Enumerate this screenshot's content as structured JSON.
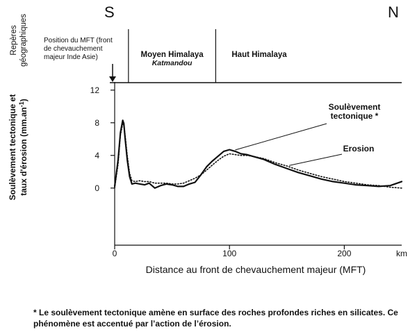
{
  "header": {
    "south_label": "S",
    "north_label": "N",
    "band_title_lines": [
      "Repères",
      "géographiques"
    ],
    "mft_position_lines": [
      "Position du MFT (front",
      "de chevauchement",
      "majeur Inde Asie)"
    ],
    "zones": [
      {
        "name": "Moyen Himalaya",
        "sub": "Katmandou",
        "start_km": 12,
        "end_km": 88
      },
      {
        "name": "Haut Himalaya",
        "sub": "",
        "start_km": 88,
        "end_km": 250
      }
    ]
  },
  "chart_data": {
    "type": "line",
    "title": "",
    "xlabel": "Distance au front de chevauchement majeur (MFT)",
    "x_unit": "km",
    "ylabel_lines": [
      "Soulèvement tectonique et",
      "taux d'érosion (mm.an",
      "-1",
      ")"
    ],
    "xlim": [
      0,
      250
    ],
    "ylim": [
      -7,
      13
    ],
    "x_ticks": [
      0,
      100,
      200
    ],
    "y_ticks": [
      0,
      4,
      8,
      12
    ],
    "grid": false,
    "series": [
      {
        "name": "Soulèvement tectonique *",
        "style": "solid",
        "color": "#111111",
        "x": [
          0,
          3,
          5,
          7,
          8,
          9,
          11,
          13,
          15,
          18,
          22,
          26,
          30,
          35,
          40,
          45,
          50,
          55,
          60,
          65,
          70,
          75,
          80,
          85,
          90,
          95,
          100,
          105,
          110,
          115,
          120,
          130,
          140,
          150,
          160,
          170,
          180,
          190,
          200,
          210,
          220,
          230,
          240,
          250
        ],
        "y": [
          0.2,
          3.5,
          6.8,
          8.3,
          7.9,
          6.2,
          3.4,
          1.4,
          0.5,
          0.6,
          0.5,
          0.4,
          0.6,
          0.0,
          0.3,
          0.5,
          0.4,
          0.2,
          0.2,
          0.5,
          0.7,
          1.6,
          2.6,
          3.3,
          3.9,
          4.5,
          4.7,
          4.5,
          4.2,
          4.1,
          3.9,
          3.5,
          2.9,
          2.4,
          1.9,
          1.5,
          1.1,
          0.8,
          0.6,
          0.4,
          0.3,
          0.2,
          0.3,
          0.8
        ]
      },
      {
        "name": "Erosion",
        "style": "dotted",
        "color": "#111111",
        "x": [
          0,
          3,
          5,
          7,
          8,
          9,
          11,
          13,
          15,
          18,
          22,
          26,
          30,
          35,
          40,
          45,
          50,
          55,
          60,
          65,
          70,
          75,
          80,
          85,
          90,
          95,
          100,
          105,
          110,
          115,
          120,
          130,
          140,
          150,
          160,
          170,
          180,
          190,
          200,
          210,
          220,
          230,
          240,
          250
        ],
        "y": [
          0.0,
          3.0,
          6.5,
          7.9,
          7.7,
          6.6,
          3.9,
          1.8,
          0.9,
          0.8,
          0.9,
          0.8,
          0.8,
          0.6,
          0.6,
          0.6,
          0.5,
          0.5,
          0.6,
          0.9,
          1.2,
          1.6,
          2.2,
          2.8,
          3.4,
          3.9,
          4.2,
          4.1,
          4.0,
          4.0,
          3.9,
          3.6,
          3.1,
          2.7,
          2.2,
          1.8,
          1.4,
          1.1,
          0.8,
          0.6,
          0.4,
          0.3,
          0.1,
          0.0
        ]
      }
    ],
    "annotations": [
      {
        "lines": [
          "Soulèvement",
          "tectonique *"
        ],
        "series": 0,
        "at_x": 105
      },
      {
        "lines": [
          "Erosion"
        ],
        "series": 1,
        "at_x": 152
      }
    ]
  },
  "footnote": "* Le soulèvement tectonique amène en surface des roches profondes riches en silicates. Ce phénomène est accentué par l’action de  l’érosion."
}
